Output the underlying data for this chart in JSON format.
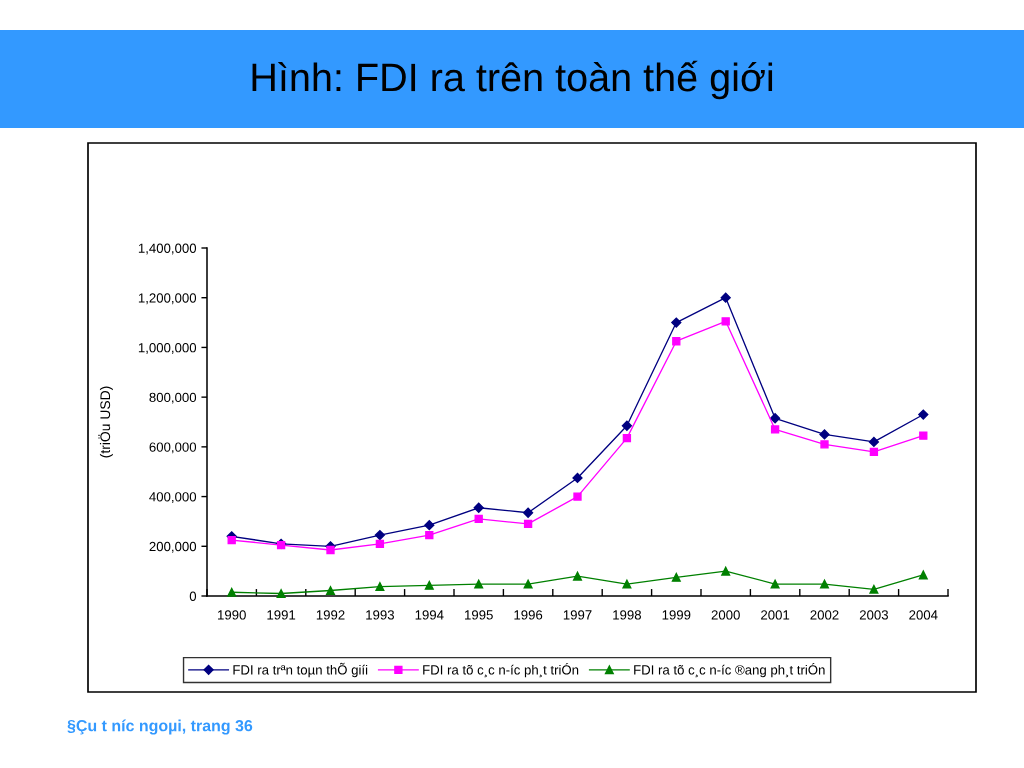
{
  "chart_data": {
    "type": "line",
    "title": "Hình: FDI ra trên toàn thế giới",
    "ylabel": "(triÖu USD)",
    "categories": [
      "1990",
      "1991",
      "1992",
      "1993",
      "1994",
      "1995",
      "1996",
      "1997",
      "1998",
      "1999",
      "2000",
      "2001",
      "2002",
      "2003",
      "2004"
    ],
    "series": [
      {
        "name": "FDI ra trªn toµn thÕ giíi",
        "color": "#000080",
        "marker": "diamond",
        "values": [
          240000,
          210000,
          200000,
          245000,
          285000,
          355000,
          335000,
          475000,
          685000,
          1100000,
          1200000,
          715000,
          650000,
          620000,
          730000
        ]
      },
      {
        "name": "FDI ra tõ c¸c n-íc ph¸t triÓn",
        "color": "#ff00ff",
        "marker": "square",
        "values": [
          225000,
          205000,
          185000,
          210000,
          245000,
          310000,
          290000,
          400000,
          635000,
          1025000,
          1105000,
          670000,
          610000,
          580000,
          645000
        ]
      },
      {
        "name": "FDI ra tõ c¸c n-íc ®ang ph¸t triÓn",
        "color": "#008000",
        "marker": "triangle",
        "values": [
          15000,
          10000,
          22000,
          38000,
          43000,
          48000,
          48000,
          80000,
          48000,
          75000,
          100000,
          48000,
          48000,
          27000,
          85000
        ]
      }
    ],
    "ylim": [
      0,
      1400000
    ],
    "yticks": [
      {
        "value": 0,
        "label": "0"
      },
      {
        "value": 200000,
        "label": "200,000"
      },
      {
        "value": 400000,
        "label": "400,000"
      },
      {
        "value": 600000,
        "label": "600,000"
      },
      {
        "value": 800000,
        "label": "800,000"
      },
      {
        "value": 1000000,
        "label": "1,000,000"
      },
      {
        "value": 1200000,
        "label": "1,200,000"
      },
      {
        "value": 1400000,
        "label": "1,400,000"
      }
    ],
    "grid": false,
    "legend": "bottom",
    "line_style": "solid",
    "annotations": [
      "§Çu t níc ngoµi, trang 36"
    ]
  }
}
